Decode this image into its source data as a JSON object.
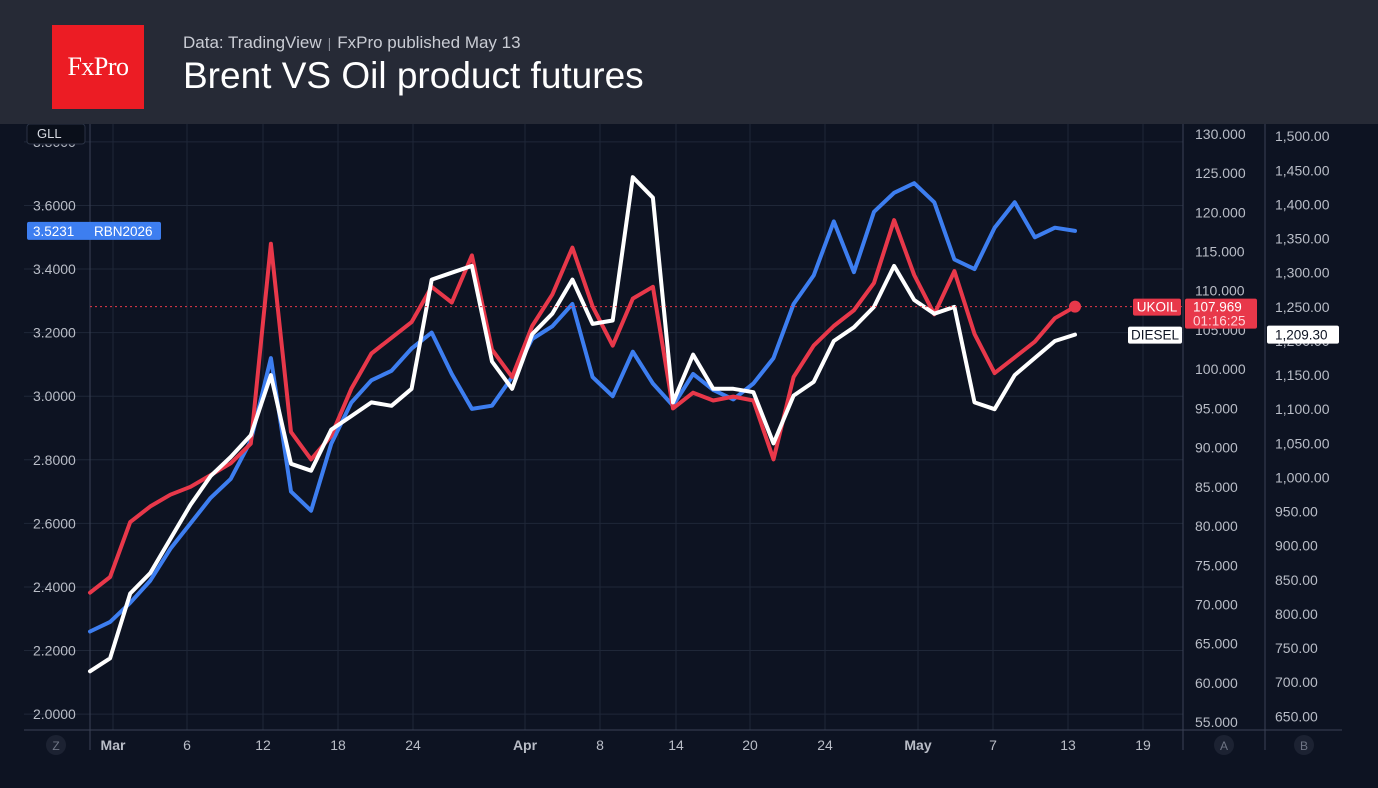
{
  "header": {
    "logo_text": "FxPro",
    "source": "Data: TradingView",
    "published": "FxPro published May 13",
    "title": "Brent VS Oil product futures"
  },
  "toolbar": {
    "left_label": "GLL",
    "corner_left": "Z",
    "corner_a": "A",
    "corner_b": "B"
  },
  "colors": {
    "background": "#0d1322",
    "header": "#262a36",
    "brand": "#ec1c24",
    "rbob": "#3d7ef0",
    "brent": "#e8384a",
    "diesel": "#ffffff",
    "grid": "#1f2738"
  },
  "chart_data": {
    "type": "line",
    "x_ticks": [
      "Mar",
      "6",
      "12",
      "18",
      "24",
      "Apr",
      "8",
      "14",
      "20",
      "24",
      "May",
      "7",
      "13",
      "19"
    ],
    "axes": {
      "left": {
        "ticks": [
          "2.0000",
          "2.2000",
          "2.4000",
          "2.6000",
          "2.8000",
          "3.0000",
          "3.2000",
          "3.4000",
          "3.6000",
          "3.8000"
        ],
        "range": [
          1.95,
          3.85
        ]
      },
      "right_a": {
        "ticks": [
          "55.000",
          "60.000",
          "65.000",
          "70.000",
          "75.000",
          "80.000",
          "85.000",
          "90.000",
          "95.000",
          "100.000",
          "105.000",
          "110.000",
          "115.000",
          "120.000",
          "125.000",
          "130.000"
        ],
        "range": [
          54,
          131
        ]
      },
      "right_b": {
        "ticks": [
          "650.00",
          "700.00",
          "750.00",
          "800.00",
          "850.00",
          "900.00",
          "950.00",
          "1,000.00",
          "1,050.00",
          "1,100.00",
          "1,150.00",
          "1,200.00",
          "1,250.00",
          "1,300.00",
          "1,350.00",
          "1,400.00",
          "1,450.00",
          "1,500.00"
        ],
        "range": [
          630,
          1515
        ]
      }
    },
    "series": [
      {
        "name": "RBN2026",
        "axis": "left",
        "color": "#3d7ef0",
        "last_value": "3.5231",
        "values": [
          2.26,
          2.29,
          2.35,
          2.42,
          2.52,
          2.6,
          2.68,
          2.74,
          2.86,
          3.12,
          2.7,
          2.64,
          2.85,
          2.98,
          3.05,
          3.08,
          3.15,
          3.2,
          3.07,
          2.96,
          2.97,
          3.06,
          3.18,
          3.22,
          3.29,
          3.06,
          3.0,
          3.14,
          3.04,
          2.97,
          3.07,
          3.02,
          2.99,
          3.04,
          3.12,
          3.29,
          3.38,
          3.55,
          3.39,
          3.58,
          3.64,
          3.67,
          3.61,
          3.43,
          3.4,
          3.53,
          3.61,
          3.5,
          3.53,
          3.52
        ]
      },
      {
        "name": "UKOIL",
        "axis": "right_a",
        "color": "#e8384a",
        "last_value": "107.969",
        "countdown": "01:16:25",
        "values": [
          71.5,
          73.5,
          80.5,
          82.5,
          84.0,
          85.0,
          86.5,
          88.0,
          90.5,
          116.0,
          92.0,
          88.5,
          91.5,
          97.5,
          102.0,
          104.0,
          106.0,
          110.5,
          108.5,
          114.5,
          102.5,
          99.0,
          105.5,
          109.5,
          115.5,
          108.0,
          103.0,
          109.0,
          110.5,
          95.0,
          97.0,
          96.0,
          96.5,
          96.0,
          88.5,
          99.0,
          103.0,
          105.5,
          107.5,
          111.0,
          119.0,
          112.0,
          107.0,
          112.5,
          104.5,
          99.5,
          101.5,
          103.5,
          106.5,
          107.969
        ]
      },
      {
        "name": "DIESEL",
        "axis": "right_b",
        "color": "#ffffff",
        "last_value": "1,209.30",
        "values": [
          716,
          735,
          830,
          860,
          910,
          960,
          1002,
          1030,
          1062,
          1150,
          1020,
          1010,
          1070,
          1090,
          1110,
          1105,
          1130,
          1290,
          1300,
          1310,
          1170,
          1130,
          1210,
          1240,
          1290,
          1225,
          1230,
          1440,
          1410,
          1110,
          1180,
          1130,
          1130,
          1125,
          1050,
          1120,
          1140,
          1200,
          1220,
          1250,
          1310,
          1260,
          1240,
          1250,
          1110,
          1100,
          1150,
          1175,
          1200,
          1209.3
        ]
      }
    ]
  }
}
